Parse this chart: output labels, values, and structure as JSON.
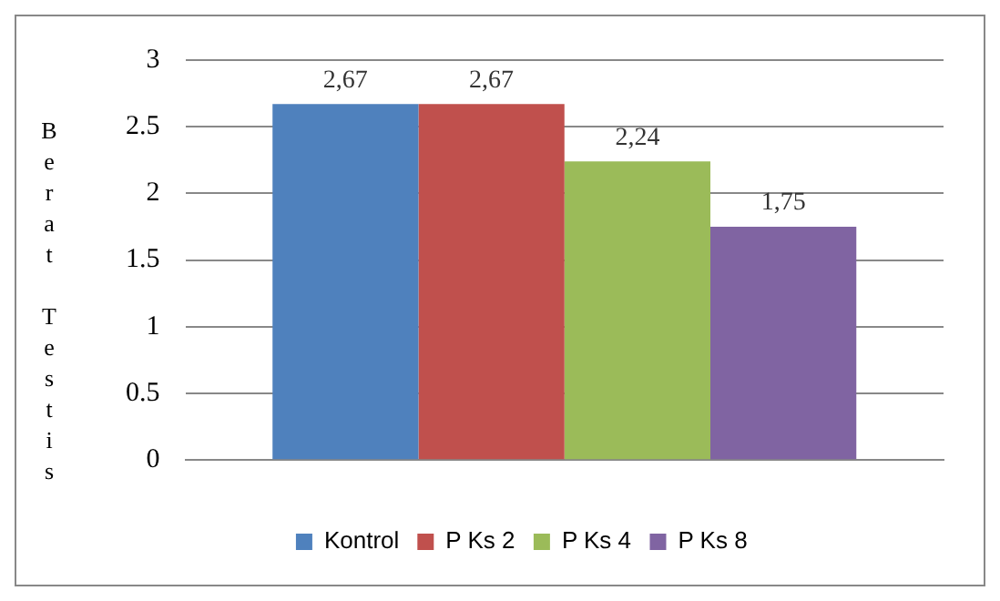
{
  "chart_data": {
    "type": "bar",
    "ylabel": "Berat Testis",
    "categories": [
      null
    ],
    "series": [
      {
        "name": "Kontrol",
        "color": "#4f81bd",
        "values": [
          2.67
        ],
        "value_labels": [
          "2,67"
        ]
      },
      {
        "name": "P Ks 2",
        "color": "#c0504d",
        "values": [
          2.67
        ],
        "value_labels": [
          "2,67"
        ]
      },
      {
        "name": "P Ks 4",
        "color": "#9bbb59",
        "values": [
          2.24
        ],
        "value_labels": [
          "2,24"
        ]
      },
      {
        "name": "P Ks 8",
        "color": "#8064a2",
        "values": [
          1.75
        ],
        "value_labels": [
          "1,75"
        ]
      }
    ],
    "ylim": [
      0,
      3
    ],
    "yticks": [
      0,
      0.5,
      1,
      1.5,
      2,
      2.5,
      3
    ],
    "grid": "y",
    "legend": "bottom"
  }
}
